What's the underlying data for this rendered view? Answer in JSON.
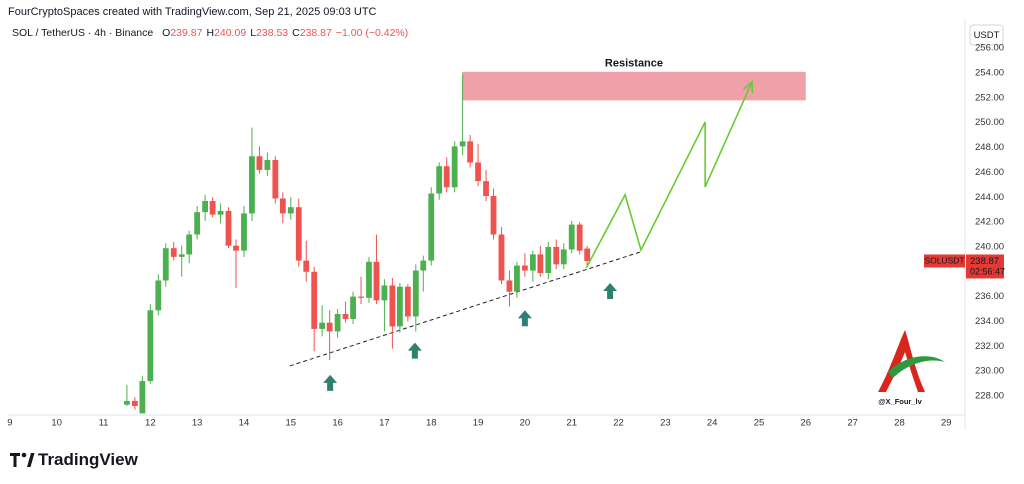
{
  "header": "FourCryptoSpaces created with TradingView.com, Sep 21, 2025 09:03 UTC",
  "chart_data": {
    "type": "candlestick",
    "symbol": "SOL / TetherUS · 4h · Binance",
    "ohlc_legend": [
      {
        "label": "O",
        "value": 239.87
      },
      {
        "label": "H",
        "value": 240.09
      },
      {
        "label": "L",
        "value": 238.53
      },
      {
        "label": "C",
        "value": 238.87
      }
    ],
    "change": "−1.00 (−0.42%)",
    "currency": "USDT",
    "x": [
      11.5,
      11.67,
      11.83,
      12,
      12.17,
      12.33,
      12.5,
      12.67,
      12.83,
      13,
      13.17,
      13.33,
      13.5,
      13.67,
      13.83,
      14,
      14.17,
      14.33,
      14.5,
      14.67,
      14.83,
      15,
      15.17,
      15.33,
      15.5,
      15.67,
      15.83,
      16,
      16.17,
      16.33,
      16.5,
      16.67,
      16.83,
      17,
      17.17,
      17.33,
      17.5,
      17.67,
      17.83,
      18,
      18.17,
      18.33,
      18.5,
      18.67,
      18.83,
      19,
      19.17,
      19.33,
      19.5,
      19.67,
      19.83,
      20,
      20.17,
      20.33,
      20.5,
      20.67,
      20.83,
      21,
      21.17,
      21.33
    ],
    "open": [
      227.3,
      227.6,
      226.6,
      229.2,
      234.9,
      237.3,
      239.9,
      239.2,
      239.4,
      241.0,
      242.8,
      243.7,
      242.6,
      242.9,
      240.1,
      239.7,
      242.7,
      247.3,
      246.2,
      247.0,
      243.9,
      242.7,
      243.2,
      238.9,
      238.0,
      233.4,
      233.9,
      233.2,
      234.6,
      234.2,
      236.0,
      235.9,
      238.8,
      235.7,
      236.9,
      233.6,
      236.8,
      234.4,
      238.1,
      238.9,
      244.3,
      246.5,
      244.8,
      248.1,
      248.5,
      246.8,
      245.3,
      244.1,
      241.0,
      237.3,
      236.4,
      238.5,
      238.1,
      239.4,
      237.9,
      240.0,
      238.6,
      239.8,
      241.8,
      239.87
    ],
    "high": [
      228.9,
      227.9,
      229.6,
      235.4,
      237.8,
      240.3,
      240.4,
      240.1,
      241.3,
      243.3,
      244.2,
      244.0,
      243.5,
      243.2,
      240.6,
      243.3,
      249.6,
      248.1,
      247.6,
      247.3,
      244.4,
      244.0,
      243.9,
      240.5,
      238.4,
      235.3,
      234.9,
      235.0,
      235.6,
      236.4,
      237.6,
      239.2,
      241.0,
      237.4,
      237.5,
      237.1,
      237.0,
      238.6,
      239.3,
      244.8,
      246.8,
      247.2,
      248.5,
      253.9,
      249.0,
      248.3,
      246.2,
      244.7,
      241.6,
      238.1,
      238.8,
      239.5,
      239.7,
      240.1,
      240.4,
      240.6,
      240.3,
      242.1,
      242.0,
      240.09
    ],
    "low": [
      227.2,
      226.9,
      226.6,
      229.0,
      234.5,
      236.8,
      238.9,
      237.6,
      238.7,
      240.6,
      242.1,
      242.4,
      241.9,
      239.9,
      236.7,
      239.2,
      242.1,
      245.9,
      245.7,
      243.5,
      241.9,
      242.2,
      238.4,
      237.2,
      231.6,
      232.8,
      230.9,
      232.7,
      233.9,
      233.8,
      235.4,
      235.5,
      235.4,
      233.2,
      231.8,
      233.1,
      234.0,
      233.2,
      236.4,
      238.5,
      243.8,
      244.4,
      244.4,
      247.4,
      246.4,
      244.9,
      243.7,
      240.6,
      237.0,
      235.2,
      235.9,
      237.6,
      237.2,
      237.6,
      237.4,
      238.2,
      238.2,
      239.5,
      239.4,
      238.53
    ],
    "close": [
      227.6,
      227.2,
      229.2,
      234.9,
      237.3,
      239.9,
      239.2,
      239.4,
      241.0,
      242.8,
      243.7,
      242.6,
      242.9,
      240.1,
      239.7,
      242.7,
      247.3,
      246.2,
      247.0,
      243.9,
      242.7,
      243.2,
      238.9,
      238.0,
      233.4,
      233.9,
      233.2,
      234.6,
      234.2,
      236.0,
      235.9,
      238.8,
      235.7,
      236.9,
      233.6,
      236.8,
      234.4,
      238.1,
      238.9,
      244.3,
      246.5,
      244.8,
      248.1,
      248.5,
      246.8,
      245.3,
      244.1,
      241.0,
      237.3,
      236.4,
      238.5,
      238.1,
      239.4,
      237.9,
      240.0,
      238.6,
      239.8,
      241.8,
      239.7,
      238.87
    ],
    "up_color": "#4caf50",
    "down_color": "#ef5350",
    "xlim": [
      8.96,
      29.4
    ],
    "xticks": [
      9,
      10,
      11,
      12,
      13,
      14,
      15,
      16,
      17,
      18,
      19,
      20,
      21,
      22,
      23,
      24,
      25,
      26,
      27,
      28,
      29
    ],
    "ylim": [
      226.47,
      258.27
    ],
    "yticks": [
      {
        "value": 228,
        "label": "228.00"
      },
      {
        "value": 230,
        "label": "230.00"
      },
      {
        "value": 232,
        "label": "232.00"
      },
      {
        "value": 234,
        "label": "234.00"
      },
      {
        "value": 236,
        "label": "236.00"
      },
      {
        "value": 238,
        "label": "238.00"
      },
      {
        "value": 240,
        "label": "240.00"
      },
      {
        "value": 242,
        "label": "242.00"
      },
      {
        "value": 244,
        "label": "244.00"
      },
      {
        "value": 246,
        "label": "246.00"
      },
      {
        "value": 248,
        "label": "248.00"
      },
      {
        "value": 250,
        "label": "250.00"
      },
      {
        "value": 252,
        "label": "252.00"
      },
      {
        "value": 254,
        "label": "254.00"
      },
      {
        "value": 256,
        "label": "256.00"
      }
    ],
    "price_tag": {
      "symbol": "SOLUSDT",
      "value": 238.87,
      "countdown": "02:56:47",
      "color": "#e53935"
    },
    "resistance": {
      "label": "Resistance",
      "x": [
        18.66,
        26
      ],
      "low": 251.8,
      "high": 254.1,
      "color": "#f0a0a8",
      "text_color": "#e0505c"
    },
    "support_line": {
      "x": [
        14.98,
        22.46
      ],
      "y": [
        230.42,
        239.59
      ]
    },
    "projection": {
      "x": [
        21.31,
        22.14,
        22.48,
        23.85,
        23.85,
        24.85
      ],
      "y": [
        238.3,
        244.2,
        239.75,
        250.06,
        244.83,
        253.28
      ],
      "color": "#66cc33"
    },
    "signal_arrows": {
      "x": [
        15.84,
        17.65,
        20.0,
        21.82
      ],
      "y": [
        229.7,
        232.3,
        234.9,
        237.1
      ],
      "color": "#2e8070"
    }
  },
  "watermark": "@X_Four_lv",
  "footer": "TradingView"
}
